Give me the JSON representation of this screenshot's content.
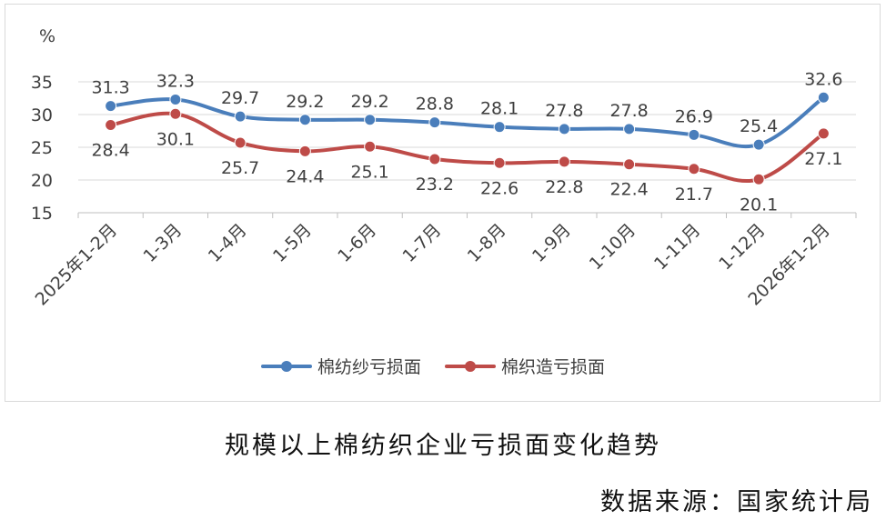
{
  "chart_data": {
    "type": "line",
    "unit_label": "%",
    "ylim": [
      15,
      35
    ],
    "yticks": [
      15,
      20,
      25,
      30,
      35
    ],
    "grid": true,
    "legend_position": "bottom",
    "categories": [
      "2025年1-2月",
      "1-3月",
      "1-4月",
      "1-5月",
      "1-6月",
      "1-7月",
      "1-8月",
      "1-9月",
      "1-10月",
      "1-11月",
      "1-12月",
      "2026年1-2月"
    ],
    "series": [
      {
        "name": "棉纺纱亏损面",
        "color": "#4a7ebb",
        "values": [
          31.3,
          32.3,
          29.7,
          29.2,
          29.2,
          28.8,
          28.1,
          27.8,
          27.8,
          26.9,
          25.4,
          32.6
        ],
        "value_labels": [
          "31.3",
          "32.3",
          "29.7",
          "29.2",
          "29.2",
          "28.8",
          "28.1",
          "27.8",
          "27.8",
          "26.9",
          "25.4",
          "32.6"
        ]
      },
      {
        "name": "棉织造亏损面",
        "color": "#be4b48",
        "values": [
          28.4,
          30.1,
          25.7,
          24.4,
          25.1,
          23.2,
          22.6,
          22.8,
          22.4,
          21.7,
          20.1,
          27.1
        ],
        "value_labels": [
          "28.4",
          "30.1",
          "25.7",
          "24.4",
          "25.1",
          "23.2",
          "22.6",
          "22.8",
          "22.4",
          "21.7",
          "20.1",
          "27.1"
        ]
      }
    ]
  },
  "caption": {
    "title": "规模以上棉纺织企业亏损面变化趋势",
    "source": "数据来源：国家统计局"
  }
}
